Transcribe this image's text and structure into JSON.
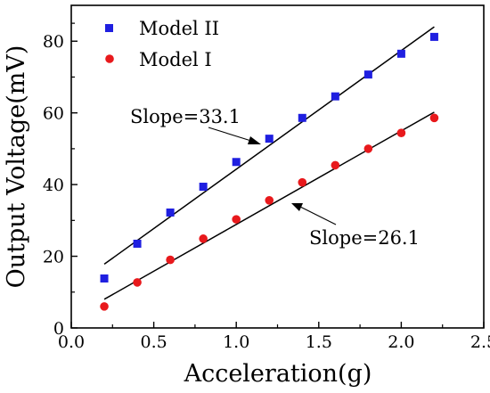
{
  "chart_data": {
    "type": "scatter",
    "xlabel": "Acceleration(g)",
    "ylabel": "Output Voltage(mV)",
    "xlim": [
      0.0,
      2.5
    ],
    "ylim": [
      0,
      90
    ],
    "x_ticks": [
      0.0,
      0.5,
      1.0,
      1.5,
      2.0,
      2.5
    ],
    "x_tick_labels": [
      "0.0",
      "0.5",
      "1.0",
      "1.5",
      "2.0",
      "2.5"
    ],
    "y_ticks": [
      0,
      20,
      40,
      60,
      80
    ],
    "y_tick_labels": [
      "0",
      "20",
      "40",
      "60",
      "80"
    ],
    "grid": false,
    "legend_position": "top-left",
    "series": [
      {
        "name": "Model II",
        "marker": "square",
        "color": "#1f1fe0",
        "x": [
          0.2,
          0.4,
          0.6,
          0.8,
          1.0,
          1.2,
          1.4,
          1.6,
          1.8,
          2.0,
          2.2
        ],
        "y": [
          13.8,
          23.5,
          32.2,
          39.4,
          46.3,
          52.8,
          58.6,
          64.6,
          70.7,
          76.5,
          81.2
        ],
        "fit": {
          "x": [
            0.2,
            2.2
          ],
          "y": [
            17.8,
            84.0
          ]
        }
      },
      {
        "name": "Model I",
        "marker": "circle",
        "color": "#e8191c",
        "x": [
          0.2,
          0.4,
          0.6,
          0.8,
          1.0,
          1.2,
          1.4,
          1.6,
          1.8,
          2.0,
          2.2
        ],
        "y": [
          6.0,
          12.7,
          19.0,
          24.9,
          30.3,
          35.6,
          40.6,
          45.4,
          50.0,
          54.4,
          58.6
        ],
        "fit": {
          "x": [
            0.2,
            2.2
          ],
          "y": [
            8.0,
            60.2
          ]
        }
      }
    ],
    "annotations": [
      {
        "text": "Slope=33.1",
        "target": "Model II"
      },
      {
        "text": "Slope=26.1",
        "target": "Model I"
      }
    ]
  }
}
